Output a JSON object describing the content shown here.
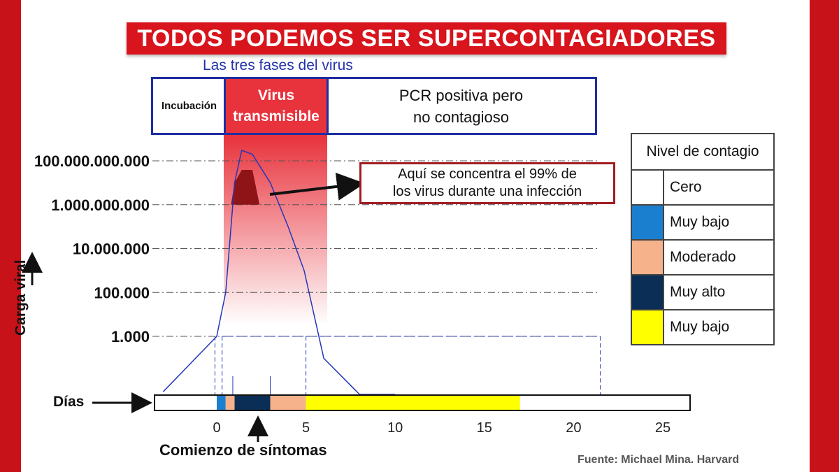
{
  "title": "TODOS PODEMOS SER SUPERCONTAGIADORES",
  "phases": {
    "label": "Las tres fases del virus",
    "incubation": "Incubación",
    "transmissible": [
      "Virus",
      "transmisible"
    ],
    "pcr": [
      "PCR positiva pero",
      "no contagioso"
    ]
  },
  "annotation": [
    "Aquí se concentra el 99% de",
    "los virus durante una infección"
  ],
  "legend": {
    "title": "Nivel de contagio",
    "items": [
      {
        "label": "Cero",
        "color": "#ffffff"
      },
      {
        "label": "Muy bajo",
        "color": "#1b7fd0"
      },
      {
        "label": "Moderado",
        "color": "#f6b28a"
      },
      {
        "label": "Muy alto",
        "color": "#0b2e57"
      },
      {
        "label": "Muy bajo",
        "color": "#ffff00"
      }
    ]
  },
  "axis_labels": {
    "y": "Carga viral",
    "days": "Días",
    "symptoms": "Comienzo de síntomas"
  },
  "source": "Fuente: Michael Mina. Harvard",
  "chart_data": {
    "type": "area",
    "y_scale": "log",
    "y_ticks": [
      {
        "value": 1000,
        "label": "1.000"
      },
      {
        "value": 100000,
        "label": "100.000"
      },
      {
        "value": 10000000,
        "label": "10.000.000"
      },
      {
        "value": 1000000000,
        "label": "1.000.000.000"
      },
      {
        "value": 100000000000,
        "label": "100.000.000.000"
      }
    ],
    "x_ticks": [
      0,
      5,
      10,
      15,
      20,
      25
    ],
    "xlim": [
      -3,
      26
    ],
    "viral_load_curve": [
      {
        "x": -3,
        "y": 3
      },
      {
        "x": 0,
        "y": 1000
      },
      {
        "x": 0.5,
        "y": 100000
      },
      {
        "x": 1,
        "y": 10000000000
      },
      {
        "x": 1.4,
        "y": 300000000000
      },
      {
        "x": 2,
        "y": 200000000000
      },
      {
        "x": 3,
        "y": 10000000000
      },
      {
        "x": 4,
        "y": 100000000
      },
      {
        "x": 4.9,
        "y": 1000000
      },
      {
        "x": 6,
        "y": 100
      },
      {
        "x": 8,
        "y": 0.01
      },
      {
        "x": 10,
        "y": 0.0001
      }
    ],
    "peak_region": {
      "x_start": 0.8,
      "x_end": 2.4,
      "y_min": 1000000000
    },
    "transmissible_window": {
      "x_start": 0.3,
      "x_end": 5.0
    },
    "contagion_timeline": [
      {
        "x_start": -3,
        "x_end": 0,
        "level": "Cero",
        "color": "#ffffff"
      },
      {
        "x_start": 0,
        "x_end": 0.5,
        "level": "Muy bajo",
        "color": "#1b7fd0"
      },
      {
        "x_start": 0.5,
        "x_end": 1,
        "level": "Moderado",
        "color": "#f6b28a"
      },
      {
        "x_start": 1,
        "x_end": 3,
        "level": "Muy alto",
        "color": "#0b2e57"
      },
      {
        "x_start": 3,
        "x_end": 5,
        "level": "Moderado",
        "color": "#f6b28a"
      },
      {
        "x_start": 5,
        "x_end": 17,
        "level": "Muy bajo",
        "color": "#ffff00"
      },
      {
        "x_start": 17,
        "x_end": 21.5,
        "level": "Cero",
        "color": "#ffffff"
      }
    ],
    "symptom_onset_x": 1.8
  }
}
